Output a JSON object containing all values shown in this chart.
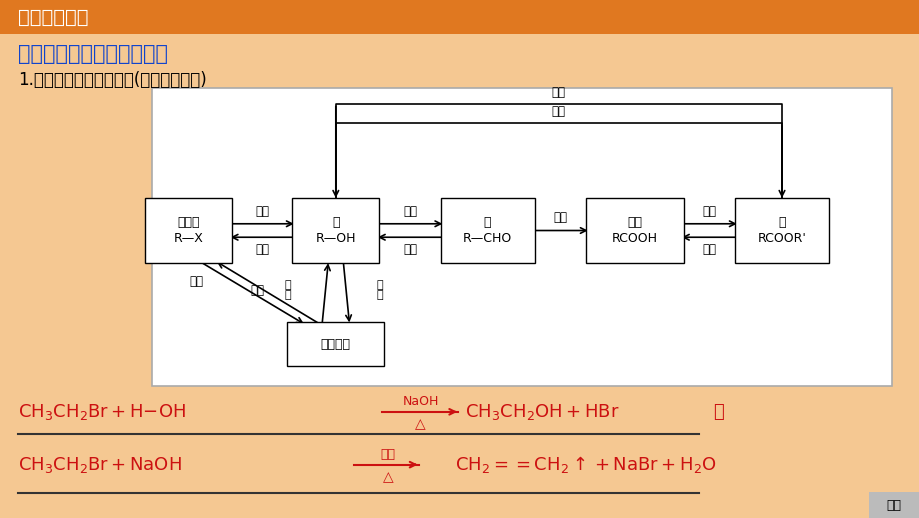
{
  "bg_color": "#F5C892",
  "header_color": "#E07820",
  "header_text": "基础知识导学",
  "header_text_color": "#FFFFFF",
  "title_text": "常见有机物之间的相互转化",
  "title_color": "#1144CC",
  "subtitle_text": "1.写出对应的化学方程式(以溴乙烷为例)",
  "subtitle_color": "#000000",
  "eq_color": "#CC1111",
  "deer_color": "#CC3311"
}
